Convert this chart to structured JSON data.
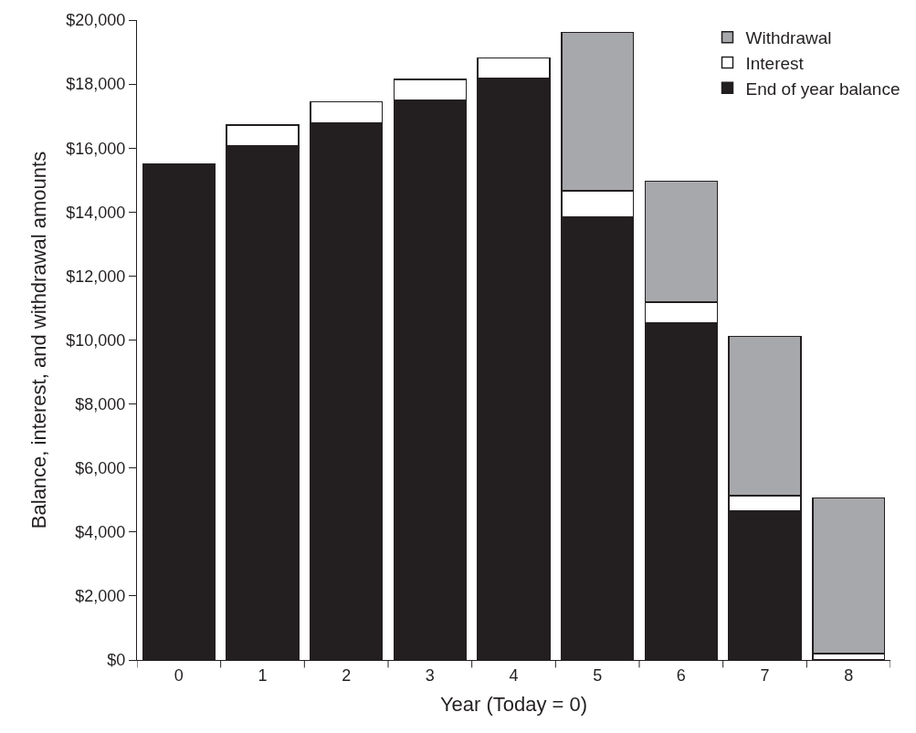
{
  "chart_data": {
    "type": "bar",
    "stacked": true,
    "xlabel": "Year (Today = 0)",
    "ylabel": "Balance, interest, and withdrawal amounts",
    "categories": [
      "0",
      "1",
      "2",
      "3",
      "4",
      "5",
      "6",
      "7",
      "8"
    ],
    "series": [
      {
        "name": "End of year balance",
        "color": "#231f20",
        "values": [
          15510,
          16070,
          16780,
          17490,
          18180,
          13850,
          10540,
          4670,
          null
        ]
      },
      {
        "name": "Interest",
        "color": "#ffffff",
        "values": [
          null,
          650,
          660,
          660,
          640,
          820,
          650,
          460,
          200
        ]
      },
      {
        "name": "Withdrawal",
        "color": "#a7a8ab",
        "values": [
          null,
          null,
          null,
          null,
          null,
          4950,
          3770,
          4980,
          4870
        ]
      }
    ],
    "ylim": [
      0,
      20000
    ],
    "yticks": [
      {
        "value": 0,
        "label": "$0"
      },
      {
        "value": 2000,
        "label": "$2,000"
      },
      {
        "value": 4000,
        "label": "$4,000"
      },
      {
        "value": 6000,
        "label": "$6,000"
      },
      {
        "value": 8000,
        "label": "$8,000"
      },
      {
        "value": 10000,
        "label": "$10,000"
      },
      {
        "value": 12000,
        "label": "$12,000"
      },
      {
        "value": 14000,
        "label": "$14,000"
      },
      {
        "value": 16000,
        "label": "$16,000"
      },
      {
        "value": 18000,
        "label": "$18,000"
      },
      {
        "value": 20000,
        "label": "$20,000"
      }
    ],
    "legend": "top right"
  }
}
